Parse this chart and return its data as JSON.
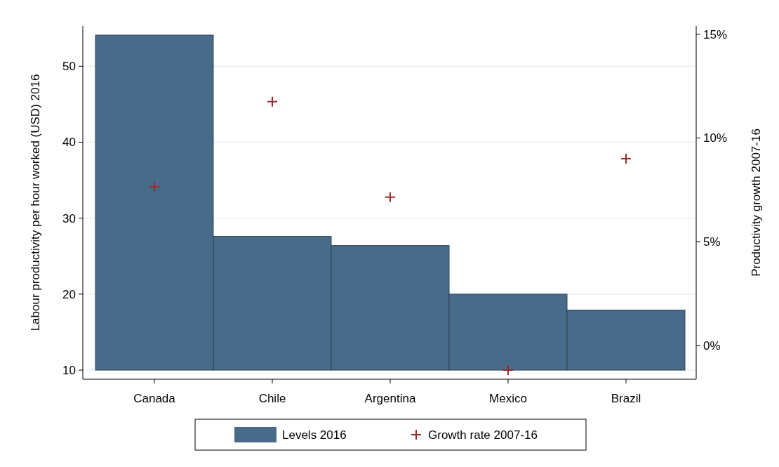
{
  "chart_data": {
    "type": "bar",
    "categories": [
      "Canada",
      "Chile",
      "Argentina",
      "Mexico",
      "Brazil"
    ],
    "ylabel": "Labour productivity per hour worked (USD) 2016",
    "y2label": "Productivity growth 2007-16",
    "ylim": [
      8.8,
      55.3
    ],
    "yticks": [
      10,
      20,
      30,
      40,
      50
    ],
    "y2lim": [
      -1.63,
      15.4
    ],
    "y2ticks": [
      {
        "value": 0,
        "label": "0%"
      },
      {
        "value": 5,
        "label": "5%"
      },
      {
        "value": 10,
        "label": "10%"
      },
      {
        "value": 15,
        "label": "15%"
      }
    ],
    "grid": "y",
    "legend": "bottom",
    "series": [
      {
        "name": "Levels 2016",
        "color": "#496b8a",
        "base": [
          10,
          10,
          10,
          10,
          10
        ],
        "values": [
          44.1,
          17.6,
          16.4,
          10.0,
          7.9
        ]
      },
      {
        "name": "Growth rate 2007-16",
        "type": "scatter",
        "axis": "y2",
        "marker": "cross",
        "color": "#9b2a2a",
        "values": [
          7.65,
          11.75,
          7.15,
          -1.19,
          9.0
        ]
      }
    ]
  }
}
